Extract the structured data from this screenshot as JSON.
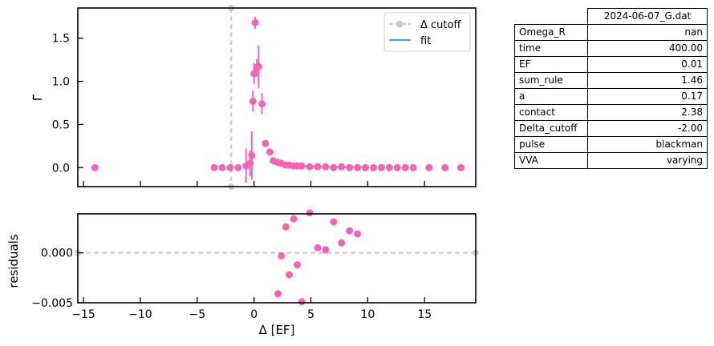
{
  "chart_data": [
    {
      "type": "scatter",
      "panel": "main",
      "xlim": [
        -15.5,
        19.5
      ],
      "ylim": [
        -0.22,
        1.85
      ],
      "ylabel": "Γ̃",
      "yticks": [
        "0.0",
        "0.5",
        "1.0",
        "1.5"
      ],
      "ytick_values": [
        0,
        0.5,
        1.0,
        1.5
      ],
      "xticks": [
        -15,
        -10,
        -5,
        0,
        5,
        10,
        15
      ],
      "cutoff_x": -2.0,
      "legend": {
        "placement": "top-right",
        "entries": [
          {
            "label": "Δ cutoff",
            "color": "#cccccc",
            "style": "dashed-with-marker"
          },
          {
            "label": "fit",
            "color": "#6495ed",
            "style": "line"
          }
        ]
      },
      "points_color": "#f564b4",
      "points": [
        {
          "x": -14.0,
          "y": 0.0,
          "err": 0.0
        },
        {
          "x": -3.5,
          "y": 0.0,
          "err": 0.0
        },
        {
          "x": -2.8,
          "y": 0.0,
          "err": 0.0
        },
        {
          "x": -2.1,
          "y": 0.0,
          "err": 0.0
        },
        {
          "x": -1.4,
          "y": 0.0,
          "err": 0.0
        },
        {
          "x": -0.7,
          "y": 0.02,
          "err": 0.2
        },
        {
          "x": -0.35,
          "y": 0.05,
          "err": 0.15
        },
        {
          "x": -0.2,
          "y": 0.14,
          "err": 0.28
        },
        {
          "x": -0.1,
          "y": 0.77,
          "err": 0.12
        },
        {
          "x": 0.0,
          "y": 1.09,
          "err": 0.12
        },
        {
          "x": 0.1,
          "y": 1.68,
          "err": 0.07
        },
        {
          "x": 0.25,
          "y": 1.16,
          "err": 0.1
        },
        {
          "x": 0.4,
          "y": 1.17,
          "err": 0.25
        },
        {
          "x": 0.7,
          "y": 0.74,
          "err": 0.12
        },
        {
          "x": 1.0,
          "y": 0.28,
          "err": 0.04
        },
        {
          "x": 1.4,
          "y": 0.18,
          "err": 0.02
        },
        {
          "x": 1.7,
          "y": 0.08,
          "err": 0.02
        },
        {
          "x": 2.1,
          "y": 0.06,
          "err": 0.01
        },
        {
          "x": 2.4,
          "y": 0.05,
          "err": 0.01
        },
        {
          "x": 2.8,
          "y": 0.03,
          "err": 0.01
        },
        {
          "x": 3.1,
          "y": 0.03,
          "err": 0.01
        },
        {
          "x": 3.5,
          "y": 0.02,
          "err": 0.0
        },
        {
          "x": 3.8,
          "y": 0.02,
          "err": 0.0
        },
        {
          "x": 4.2,
          "y": 0.02,
          "err": 0.0
        },
        {
          "x": 4.9,
          "y": 0.01,
          "err": 0.0
        },
        {
          "x": 5.6,
          "y": 0.01,
          "err": 0.0
        },
        {
          "x": 6.3,
          "y": 0.01,
          "err": 0.0
        },
        {
          "x": 7.0,
          "y": 0.0,
          "err": 0.0
        },
        {
          "x": 7.7,
          "y": 0.01,
          "err": 0.0
        },
        {
          "x": 8.4,
          "y": 0.0,
          "err": 0.0
        },
        {
          "x": 9.1,
          "y": 0.0,
          "err": 0.0
        },
        {
          "x": 9.8,
          "y": 0.0,
          "err": 0.0
        },
        {
          "x": 10.5,
          "y": 0.0,
          "err": 0.0
        },
        {
          "x": 11.2,
          "y": 0.0,
          "err": 0.0
        },
        {
          "x": 11.9,
          "y": 0.0,
          "err": 0.0
        },
        {
          "x": 12.6,
          "y": 0.0,
          "err": 0.0
        },
        {
          "x": 13.3,
          "y": 0.0,
          "err": 0.0
        },
        {
          "x": 14.0,
          "y": 0.0,
          "err": 0.0
        },
        {
          "x": 15.4,
          "y": 0.0,
          "err": 0.0
        },
        {
          "x": 16.8,
          "y": 0.0,
          "err": 0.0
        },
        {
          "x": 18.2,
          "y": 0.0,
          "err": 0.0
        }
      ],
      "fit": [
        {
          "x": 2.1,
          "y": 0.06
        },
        {
          "x": 2.8,
          "y": 0.035
        },
        {
          "x": 3.5,
          "y": 0.022
        },
        {
          "x": 4.2,
          "y": 0.016
        },
        {
          "x": 5.6,
          "y": 0.01
        },
        {
          "x": 7.0,
          "y": 0.007
        },
        {
          "x": 8.4,
          "y": 0.005
        },
        {
          "x": 9.8,
          "y": 0.004
        }
      ]
    },
    {
      "type": "scatter",
      "panel": "residuals",
      "xlim": [
        -15.5,
        19.5
      ],
      "ylim": [
        -0.005,
        0.0039
      ],
      "xlabel": "Δ [EF]",
      "ylabel": "residuals",
      "yticks": [
        "0.000",
        "−0.005"
      ],
      "ytick_values": [
        0.0,
        -0.005
      ],
      "xticks": [
        "−15",
        "−10",
        "−5",
        "0",
        "5",
        "10",
        "15"
      ],
      "xtick_values": [
        -15,
        -10,
        -5,
        0,
        5,
        10,
        15
      ],
      "zero_line_color": "#cccccc",
      "points_color": "#f564b4",
      "points": [
        {
          "x": 2.1,
          "y": -0.0041
        },
        {
          "x": 2.4,
          "y": -0.0003
        },
        {
          "x": 2.8,
          "y": 0.0026
        },
        {
          "x": 3.1,
          "y": -0.0022
        },
        {
          "x": 3.5,
          "y": 0.0034
        },
        {
          "x": 3.8,
          "y": -0.0012
        },
        {
          "x": 4.2,
          "y": -0.0049
        },
        {
          "x": 4.9,
          "y": 0.004
        },
        {
          "x": 5.6,
          "y": 0.0005
        },
        {
          "x": 6.3,
          "y": 0.0003
        },
        {
          "x": 7.0,
          "y": 0.0031
        },
        {
          "x": 7.7,
          "y": 0.001
        },
        {
          "x": 8.4,
          "y": 0.0022
        },
        {
          "x": 9.1,
          "y": 0.0019
        }
      ]
    }
  ],
  "table": {
    "title": "2024-06-07_G.dat",
    "rows": [
      {
        "key": "Omega_R",
        "value": "nan"
      },
      {
        "key": "time",
        "value": "400.00"
      },
      {
        "key": "EF",
        "value": "0.01"
      },
      {
        "key": "sum_rule",
        "value": "1.46"
      },
      {
        "key": "a",
        "value": "0.17"
      },
      {
        "key": "contact",
        "value": "2.38"
      },
      {
        "key": "Delta_cutoff",
        "value": "-2.00"
      },
      {
        "key": "pulse",
        "value": "blackman"
      },
      {
        "key": "VVA",
        "value": "varying"
      }
    ]
  }
}
